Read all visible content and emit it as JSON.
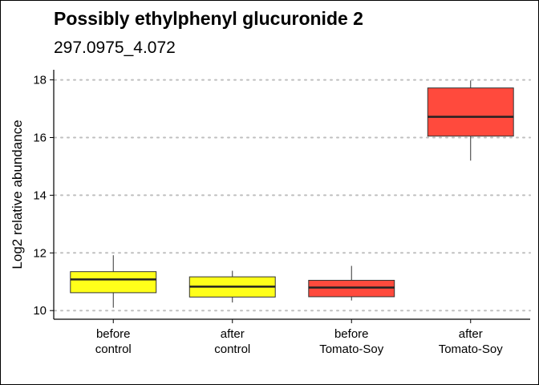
{
  "chart_data": {
    "type": "boxplot",
    "title": "Possibly ethylphenyl glucuronide 2",
    "subtitle": "297.0975_4.072",
    "xlabel": "",
    "ylabel": "Log2 relative abundance",
    "ylim": [
      9.7,
      18.35
    ],
    "yticks": [
      10,
      12,
      14,
      16,
      18
    ],
    "grid": "horizontal-dotted",
    "legend": "none",
    "categories": [
      [
        "before",
        "control"
      ],
      [
        "after",
        "control"
      ],
      [
        "before",
        "Tomato-Soy"
      ],
      [
        "after",
        "Tomato-Soy"
      ]
    ],
    "boxes": [
      {
        "lower_whisker": 10.1,
        "q1": 10.62,
        "median": 11.08,
        "q3": 11.35,
        "upper_whisker": 11.92,
        "color": "#FFFF1A"
      },
      {
        "lower_whisker": 10.28,
        "q1": 10.47,
        "median": 10.83,
        "q3": 11.17,
        "upper_whisker": 11.38,
        "color": "#FFFF1A"
      },
      {
        "lower_whisker": 10.35,
        "q1": 10.48,
        "median": 10.8,
        "q3": 11.05,
        "upper_whisker": 11.55,
        "color": "#FF4A3D"
      },
      {
        "lower_whisker": 15.2,
        "q1": 16.05,
        "median": 16.72,
        "q3": 17.72,
        "upper_whisker": 17.98,
        "color": "#FF4A3D"
      }
    ]
  }
}
